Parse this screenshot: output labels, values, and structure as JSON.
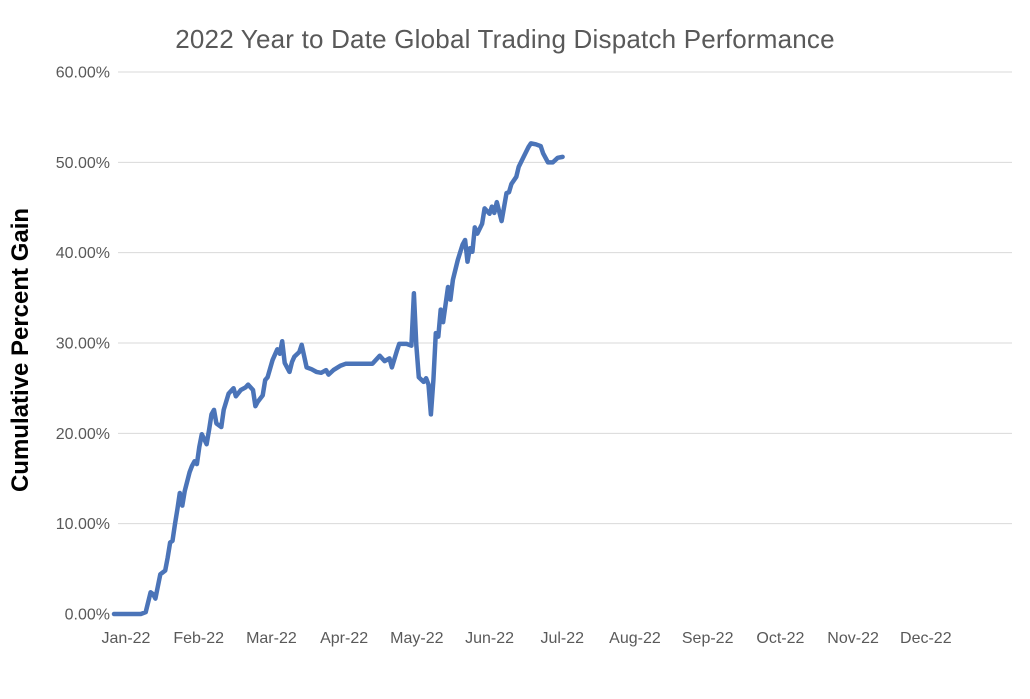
{
  "colors": {
    "background": "#ffffff",
    "title_text": "#595959",
    "tick_text": "#595959",
    "gridline": "#d9d9d9",
    "line": "#4b74b8",
    "y_axis_title_text": "#000000"
  },
  "chart_data": {
    "type": "line",
    "title": "2022 Year to Date Global Trading Dispatch Performance",
    "xlabel": "",
    "ylabel": "Cumulative Percent Gain",
    "x_unit": "day of year 2022 (daily cumulative series, Jan 1 through ~Jul 5)",
    "x_tick_labels": [
      "Jan-22",
      "Feb-22",
      "Mar-22",
      "Apr-22",
      "May-22",
      "Jun-22",
      "Jul-22",
      "Aug-22",
      "Sep-22",
      "Oct-22",
      "Nov-22",
      "Dec-22"
    ],
    "y_tick_labels": [
      "0.00%",
      "10.00%",
      "20.00%",
      "30.00%",
      "40.00%",
      "50.00%",
      "60.00%"
    ],
    "y_ticks_pct": [
      0,
      10,
      20,
      30,
      40,
      50,
      60
    ],
    "ylim": [
      0,
      60
    ],
    "xlim_days": [
      1,
      365
    ],
    "grid": "horizontal-only-10-to-60",
    "legend": "none",
    "series": [
      {
        "name": "Cumulative Percent Gain",
        "points": [
          [
            1,
            0.0
          ],
          [
            12,
            0.0
          ],
          [
            14,
            0.2
          ],
          [
            16,
            2.4
          ],
          [
            17,
            2.2
          ],
          [
            18,
            1.7
          ],
          [
            20,
            4.4
          ],
          [
            22,
            4.8
          ],
          [
            23,
            6.2
          ],
          [
            24,
            7.9
          ],
          [
            25,
            8.1
          ],
          [
            26,
            9.9
          ],
          [
            27,
            11.6
          ],
          [
            28,
            13.4
          ],
          [
            29,
            12.0
          ],
          [
            30,
            13.6
          ],
          [
            32,
            15.7
          ],
          [
            33,
            16.4
          ],
          [
            34,
            16.9
          ],
          [
            35,
            16.6
          ],
          [
            36,
            18.5
          ],
          [
            37,
            19.9
          ],
          [
            39,
            18.8
          ],
          [
            40,
            20.4
          ],
          [
            41,
            22.1
          ],
          [
            42,
            22.6
          ],
          [
            43,
            21.1
          ],
          [
            45,
            20.7
          ],
          [
            46,
            22.6
          ],
          [
            48,
            24.4
          ],
          [
            50,
            25.0
          ],
          [
            51,
            24.1
          ],
          [
            53,
            24.8
          ],
          [
            55,
            25.1
          ],
          [
            56,
            25.4
          ],
          [
            58,
            24.8
          ],
          [
            59,
            23.0
          ],
          [
            60,
            23.5
          ],
          [
            62,
            24.2
          ],
          [
            63,
            25.9
          ],
          [
            64,
            26.2
          ],
          [
            66,
            28.1
          ],
          [
            68,
            29.3
          ],
          [
            69,
            28.8
          ],
          [
            70,
            30.2
          ],
          [
            71,
            27.8
          ],
          [
            73,
            26.8
          ],
          [
            74,
            27.9
          ],
          [
            75,
            28.5
          ],
          [
            77,
            29.0
          ],
          [
            78,
            29.8
          ],
          [
            80,
            27.3
          ],
          [
            82,
            27.1
          ],
          [
            84,
            26.8
          ],
          [
            86,
            26.7
          ],
          [
            88,
            27.0
          ],
          [
            89,
            26.5
          ],
          [
            91,
            27.0
          ],
          [
            94,
            27.5
          ],
          [
            96,
            27.7
          ],
          [
            102,
            27.7
          ],
          [
            107,
            27.7
          ],
          [
            110,
            28.6
          ],
          [
            112,
            28.0
          ],
          [
            114,
            28.3
          ],
          [
            115,
            27.3
          ],
          [
            117,
            29.1
          ],
          [
            118,
            29.9
          ],
          [
            121,
            29.9
          ],
          [
            123,
            29.7
          ],
          [
            124,
            35.5
          ],
          [
            125,
            29.8
          ],
          [
            126,
            26.2
          ],
          [
            128,
            25.7
          ],
          [
            129,
            26.1
          ],
          [
            130,
            25.4
          ],
          [
            131,
            22.1
          ],
          [
            132,
            25.9
          ],
          [
            133,
            31.1
          ],
          [
            134,
            30.7
          ],
          [
            135,
            33.7
          ],
          [
            136,
            32.3
          ],
          [
            138,
            36.2
          ],
          [
            139,
            34.8
          ],
          [
            140,
            37.0
          ],
          [
            142,
            39.2
          ],
          [
            144,
            40.9
          ],
          [
            145,
            41.4
          ],
          [
            146,
            39.0
          ],
          [
            147,
            40.5
          ],
          [
            148,
            40.1
          ],
          [
            149,
            42.8
          ],
          [
            150,
            42.1
          ],
          [
            152,
            43.2
          ],
          [
            153,
            44.9
          ],
          [
            155,
            44.3
          ],
          [
            156,
            45.1
          ],
          [
            157,
            44.4
          ],
          [
            158,
            45.6
          ],
          [
            160,
            43.5
          ],
          [
            162,
            46.6
          ],
          [
            163,
            46.7
          ],
          [
            164,
            47.6
          ],
          [
            166,
            48.4
          ],
          [
            167,
            49.5
          ],
          [
            169,
            50.6
          ],
          [
            171,
            51.7
          ],
          [
            172,
            52.1
          ],
          [
            174,
            52.0
          ],
          [
            176,
            51.8
          ],
          [
            177,
            51.0
          ],
          [
            179,
            50.0
          ],
          [
            181,
            50.0
          ],
          [
            183,
            50.5
          ],
          [
            185,
            50.6
          ]
        ]
      }
    ]
  }
}
